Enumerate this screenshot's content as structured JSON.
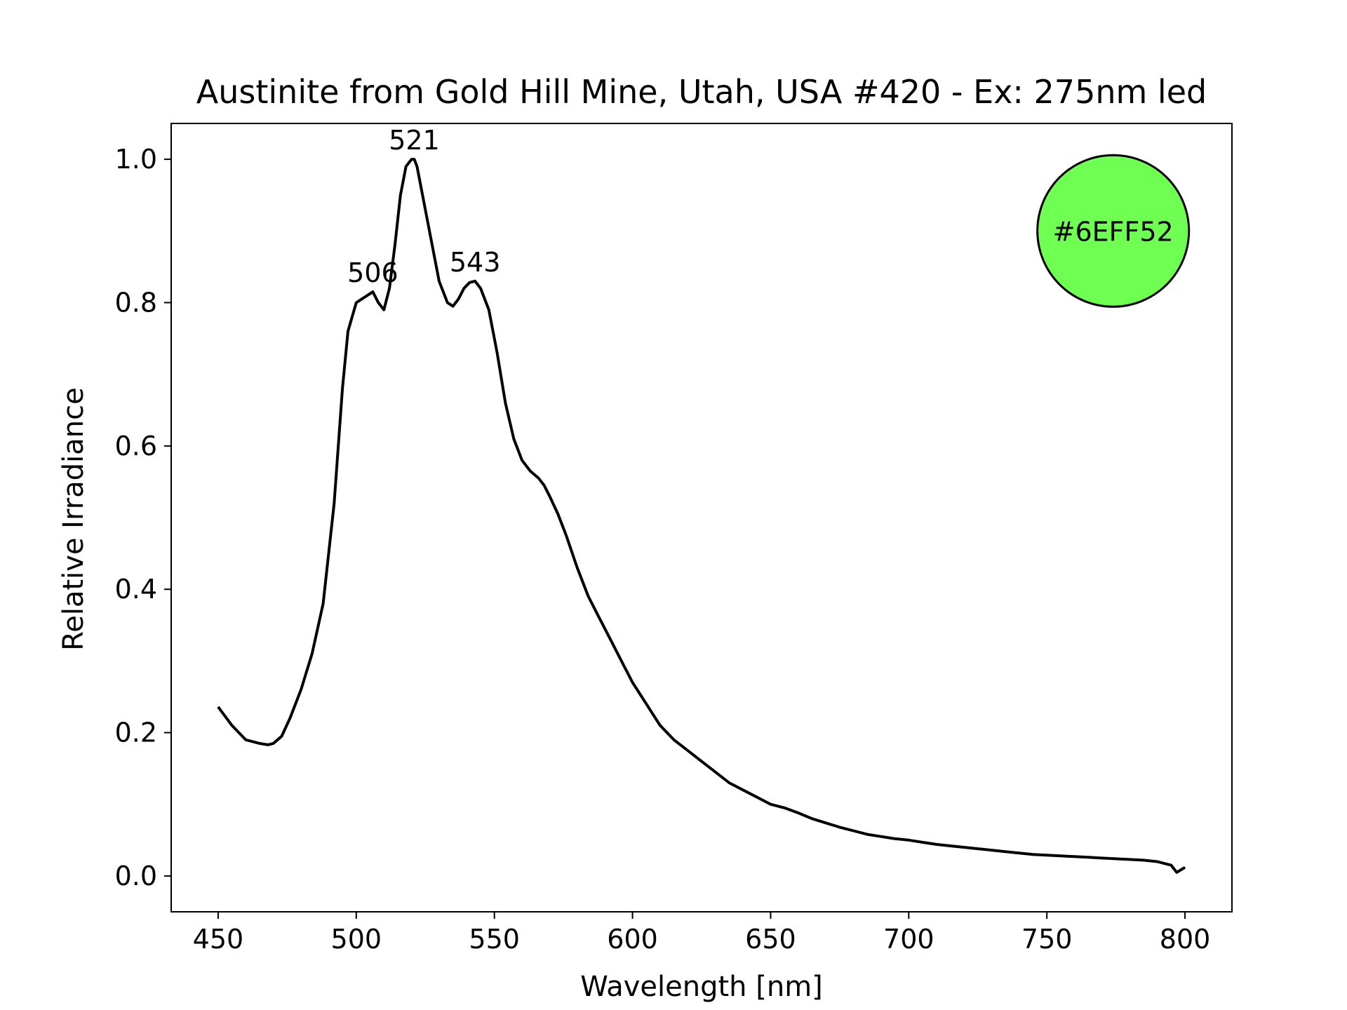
{
  "chart_data": {
    "type": "line",
    "title": "Austinite from Gold Hill Mine, Utah, USA #420 - Ex: 275nm led",
    "xlabel": "Wavelength [nm]",
    "ylabel": "Relative Irradiance",
    "xlim": [
      433,
      817
    ],
    "ylim": [
      -0.05,
      1.05
    ],
    "xticks": [
      450,
      500,
      550,
      600,
      650,
      700,
      750,
      800
    ],
    "yticks": [
      0.0,
      0.2,
      0.4,
      0.6,
      0.8,
      1.0
    ],
    "ytick_labels": [
      "0.0",
      "0.2",
      "0.4",
      "0.6",
      "0.8",
      "1.0"
    ],
    "grid": false,
    "line_color": "#000000",
    "series": [
      {
        "x": [
          450,
          455,
          460,
          465,
          468,
          470,
          473,
          476,
          480,
          484,
          488,
          492,
          495,
          497,
          500,
          502,
          504,
          506,
          508,
          510,
          512,
          514,
          516,
          518,
          520,
          521,
          522,
          524,
          527,
          530,
          533,
          535,
          537,
          539,
          541,
          543,
          545,
          548,
          551,
          554,
          557,
          560,
          563,
          566,
          568,
          570,
          573,
          576,
          580,
          584,
          588,
          592,
          596,
          600,
          605,
          610,
          615,
          620,
          625,
          630,
          635,
          640,
          645,
          650,
          655,
          660,
          665,
          670,
          675,
          680,
          685,
          690,
          695,
          700,
          705,
          710,
          715,
          720,
          725,
          730,
          735,
          740,
          745,
          750,
          755,
          760,
          765,
          770,
          775,
          780,
          785,
          790,
          795,
          797,
          800
        ],
        "y": [
          0.236,
          0.21,
          0.19,
          0.185,
          0.183,
          0.185,
          0.195,
          0.22,
          0.26,
          0.31,
          0.38,
          0.52,
          0.68,
          0.76,
          0.8,
          0.805,
          0.81,
          0.815,
          0.8,
          0.79,
          0.82,
          0.88,
          0.95,
          0.99,
          1.0,
          1.0,
          0.99,
          0.95,
          0.89,
          0.83,
          0.8,
          0.795,
          0.805,
          0.82,
          0.828,
          0.83,
          0.82,
          0.79,
          0.73,
          0.66,
          0.61,
          0.58,
          0.565,
          0.555,
          0.545,
          0.53,
          0.505,
          0.475,
          0.43,
          0.39,
          0.36,
          0.33,
          0.3,
          0.27,
          0.24,
          0.21,
          0.19,
          0.175,
          0.16,
          0.145,
          0.13,
          0.12,
          0.11,
          0.1,
          0.095,
          0.088,
          0.08,
          0.074,
          0.068,
          0.063,
          0.058,
          0.055,
          0.052,
          0.05,
          0.047,
          0.044,
          0.042,
          0.04,
          0.038,
          0.036,
          0.034,
          0.032,
          0.03,
          0.029,
          0.028,
          0.027,
          0.026,
          0.025,
          0.024,
          0.023,
          0.022,
          0.02,
          0.015,
          0.005,
          0.012
        ]
      }
    ],
    "annotations": [
      {
        "text": "506",
        "x": 506,
        "y": 0.815
      },
      {
        "text": "521",
        "x": 521,
        "y": 1.0
      },
      {
        "text": "543",
        "x": 543,
        "y": 0.83
      }
    ],
    "color_swatch": {
      "label": "#6EFF52",
      "fill": "#6EFF52",
      "x": 774,
      "y": 0.9
    }
  }
}
